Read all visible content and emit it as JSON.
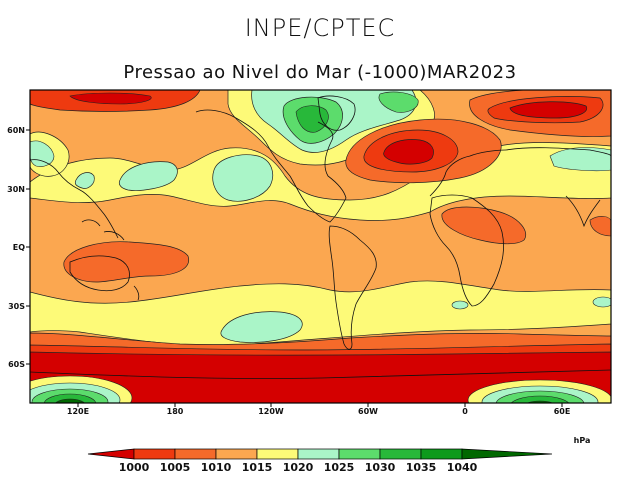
{
  "header": {
    "org": "INPE/CPTEC",
    "title": "Pressao ao Nivel do Mar (-1000)MAR2023"
  },
  "axes": {
    "lat_labels": [
      "60N",
      "30N",
      "EQ",
      "30S",
      "60S"
    ],
    "lon_labels": [
      "120E",
      "180",
      "120W",
      "60W",
      "0",
      "60E"
    ]
  },
  "legend": {
    "unit": "hPa",
    "ticks": [
      "1000",
      "1005",
      "1010",
      "1015",
      "1020",
      "1025",
      "1030",
      "1035",
      "1040"
    ],
    "colors": [
      "#d40000",
      "#ee3a10",
      "#f56a2a",
      "#fba750",
      "#fdfa78",
      "#aaf5c8",
      "#5cdc6c",
      "#28b83a",
      "#0d9a1c",
      "#006800"
    ]
  }
}
